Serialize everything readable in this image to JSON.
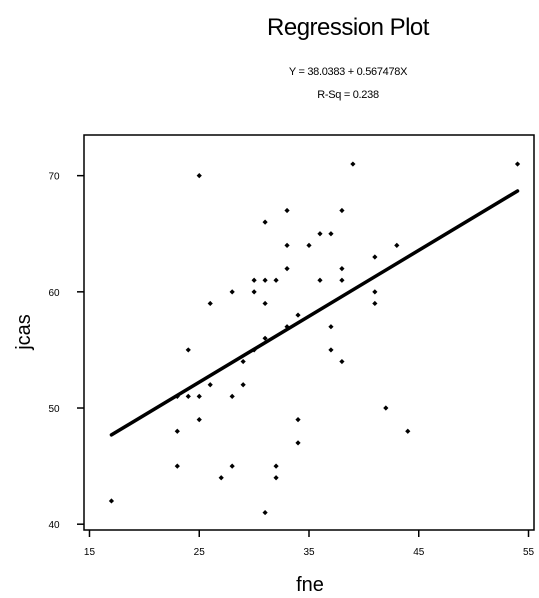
{
  "chart_data": {
    "type": "scatter",
    "title": "Regression Plot",
    "equation": "Y = 38.0383 + 0.567478X",
    "r_squared": "R-Sq = 0.238",
    "xlabel": "fne",
    "ylabel": "jcas",
    "xlim": [
      14.5,
      55.5
    ],
    "ylim": [
      39.5,
      73.5
    ],
    "x_ticks": [
      15,
      25,
      35,
      45,
      55
    ],
    "y_ticks": [
      40,
      50,
      60,
      70
    ],
    "grid": false,
    "regression": {
      "intercept": 38.0383,
      "slope": 0.567478,
      "x_range": [
        17,
        54
      ]
    },
    "points": [
      [
        17,
        42
      ],
      [
        23,
        51
      ],
      [
        23,
        48
      ],
      [
        23,
        45
      ],
      [
        24,
        55
      ],
      [
        24,
        51
      ],
      [
        25,
        70
      ],
      [
        25,
        51
      ],
      [
        25,
        49
      ],
      [
        26,
        59
      ],
      [
        26,
        52
      ],
      [
        27,
        44
      ],
      [
        28,
        60
      ],
      [
        28,
        51
      ],
      [
        28,
        45
      ],
      [
        29,
        54
      ],
      [
        29,
        52
      ],
      [
        30,
        61
      ],
      [
        30,
        60
      ],
      [
        30,
        55
      ],
      [
        31,
        66
      ],
      [
        31,
        61
      ],
      [
        31,
        59
      ],
      [
        31,
        56
      ],
      [
        31,
        41
      ],
      [
        32,
        61
      ],
      [
        32,
        45
      ],
      [
        32,
        44
      ],
      [
        33,
        67
      ],
      [
        33,
        64
      ],
      [
        33,
        62
      ],
      [
        33,
        57
      ],
      [
        34,
        58
      ],
      [
        34,
        49
      ],
      [
        34,
        47
      ],
      [
        35,
        64
      ],
      [
        36,
        65
      ],
      [
        36,
        61
      ],
      [
        37,
        65
      ],
      [
        37,
        57
      ],
      [
        37,
        55
      ],
      [
        38,
        67
      ],
      [
        38,
        62
      ],
      [
        38,
        61
      ],
      [
        38,
        54
      ],
      [
        39,
        71
      ],
      [
        41,
        63
      ],
      [
        41,
        60
      ],
      [
        41,
        59
      ],
      [
        42,
        50
      ],
      [
        43,
        64
      ],
      [
        44,
        48
      ],
      [
        54,
        71
      ]
    ]
  }
}
